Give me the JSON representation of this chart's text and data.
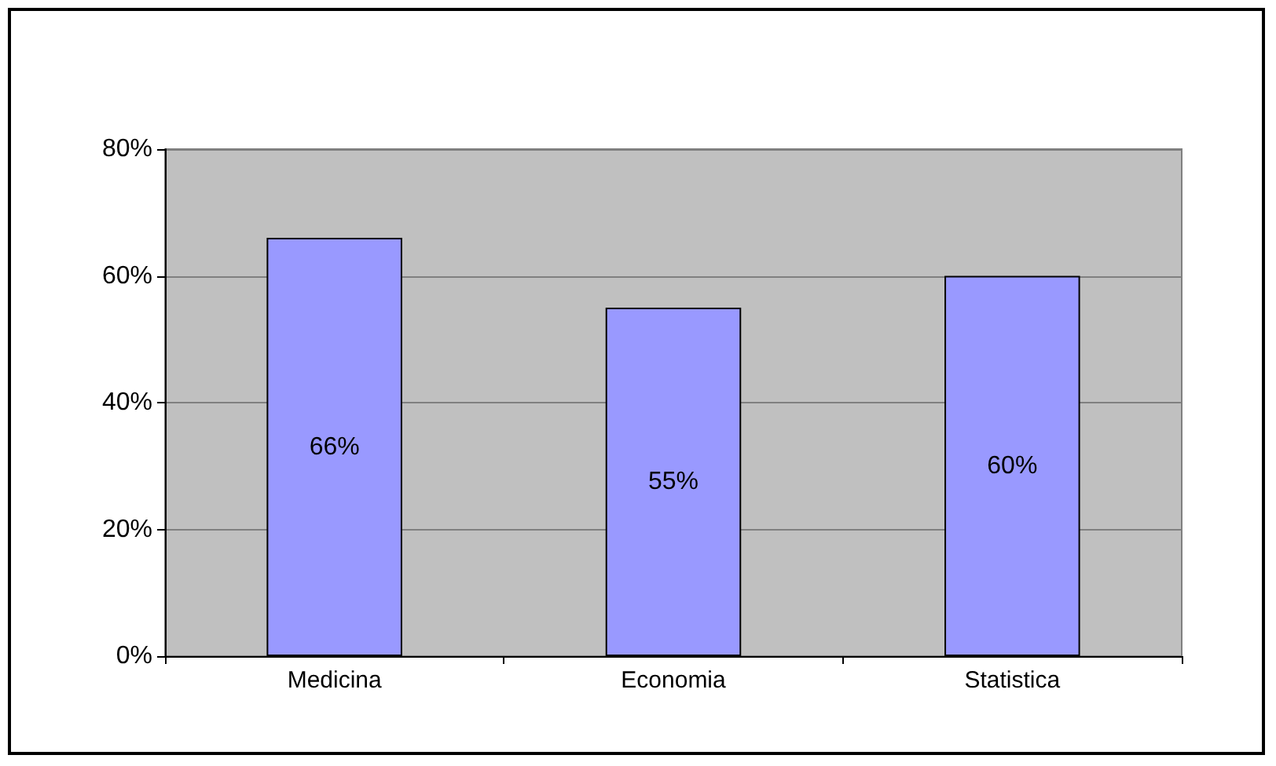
{
  "chart_data": {
    "type": "bar",
    "categories": [
      "Medicina",
      "Economia",
      "Statistica"
    ],
    "values": [
      66,
      55,
      60
    ],
    "value_labels": [
      "66%",
      "55%",
      "60%"
    ],
    "color": "#9999ff",
    "ylim": [
      0,
      80
    ],
    "yticks": [
      {
        "value": 0,
        "label": "0%"
      },
      {
        "value": 20,
        "label": "20%"
      },
      {
        "value": 40,
        "label": "40%"
      },
      {
        "value": 60,
        "label": "60%"
      },
      {
        "value": 80,
        "label": "80%"
      }
    ],
    "grid": "y"
  }
}
